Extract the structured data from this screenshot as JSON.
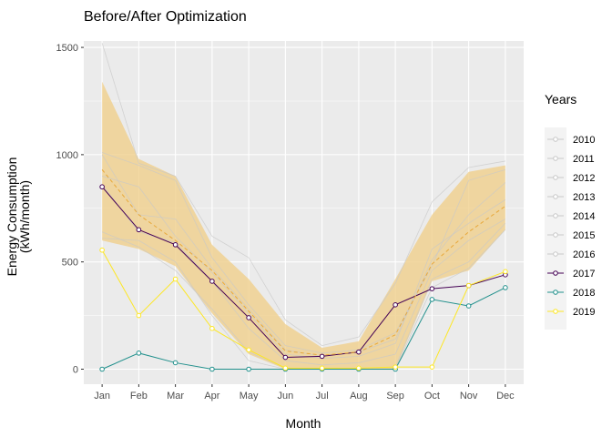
{
  "chart_data": {
    "type": "line",
    "title": "Before/After Optimization",
    "xlabel": "Month",
    "ylabel_lines": [
      "Energy Consumption",
      "(kWh/month)"
    ],
    "categories": [
      "Jan",
      "Feb",
      "Mar",
      "Apr",
      "May",
      "Jun",
      "Jul",
      "Aug",
      "Sep",
      "Oct",
      "Nov",
      "Dec"
    ],
    "yticks": [
      0,
      500,
      1000,
      1500
    ],
    "ylim": [
      -70,
      1530
    ],
    "grid": true,
    "legend": {
      "title": "Years",
      "placement": "right",
      "entries": [
        "2010",
        "2011",
        "2012",
        "2013",
        "2014",
        "2015",
        "2016",
        "2017",
        "2018",
        "2019"
      ]
    },
    "colors": {
      "panel": "#ebebeb",
      "grid": "#ffffff",
      "band": "#f0cf8c",
      "mean_line": "#e8a83a",
      "historic": "#c8c8c8",
      "y2017": "#440154",
      "y2018": "#21908c",
      "y2019": "#fde725"
    },
    "band": {
      "upper": [
        1340,
        980,
        900,
        580,
        420,
        210,
        100,
        130,
        420,
        720,
        920,
        950
      ],
      "lower": [
        600,
        560,
        480,
        260,
        70,
        0,
        0,
        0,
        0,
        410,
        460,
        650
      ]
    },
    "mean": [
      930,
      720,
      600,
      460,
      270,
      85,
      65,
      80,
      160,
      490,
      640,
      760
    ],
    "series": [
      {
        "name": "2010",
        "values": [
          1520,
          960,
          900,
          620,
          520,
          230,
          110,
          150,
          400,
          780,
          940,
          970
        ],
        "style": "historic"
      },
      {
        "name": "2011",
        "values": [
          1010,
          950,
          880,
          520,
          300,
          110,
          75,
          90,
          170,
          480,
          880,
          930
        ],
        "style": "historic"
      },
      {
        "name": "2012",
        "values": [
          900,
          850,
          620,
          450,
          260,
          70,
          50,
          60,
          120,
          560,
          680,
          790
        ],
        "style": "historic"
      },
      {
        "name": "2013",
        "values": [
          1000,
          720,
          700,
          470,
          280,
          90,
          60,
          80,
          140,
          510,
          720,
          870
        ],
        "style": "historic"
      },
      {
        "name": "2014",
        "values": [
          860,
          640,
          590,
          410,
          190,
          40,
          20,
          30,
          70,
          460,
          600,
          700
        ],
        "style": "historic"
      },
      {
        "name": "2015",
        "values": [
          640,
          570,
          460,
          280,
          80,
          5,
          0,
          5,
          10,
          420,
          500,
          680
        ],
        "style": "historic"
      },
      {
        "name": "2016",
        "values": [
          610,
          600,
          500,
          250,
          40,
          0,
          0,
          0,
          0,
          380,
          470,
          650
        ],
        "style": "historic"
      },
      {
        "name": "2017",
        "values": [
          850,
          650,
          580,
          410,
          240,
          55,
          60,
          80,
          300,
          375,
          390,
          440
        ],
        "style": "y2017"
      },
      {
        "name": "2018",
        "values": [
          0,
          75,
          30,
          0,
          0,
          0,
          0,
          0,
          0,
          325,
          295,
          380
        ],
        "style": "y2018"
      },
      {
        "name": "2019",
        "values": [
          555,
          250,
          420,
          190,
          90,
          5,
          5,
          5,
          10,
          10,
          390,
          455
        ],
        "style": "y2019"
      }
    ]
  }
}
